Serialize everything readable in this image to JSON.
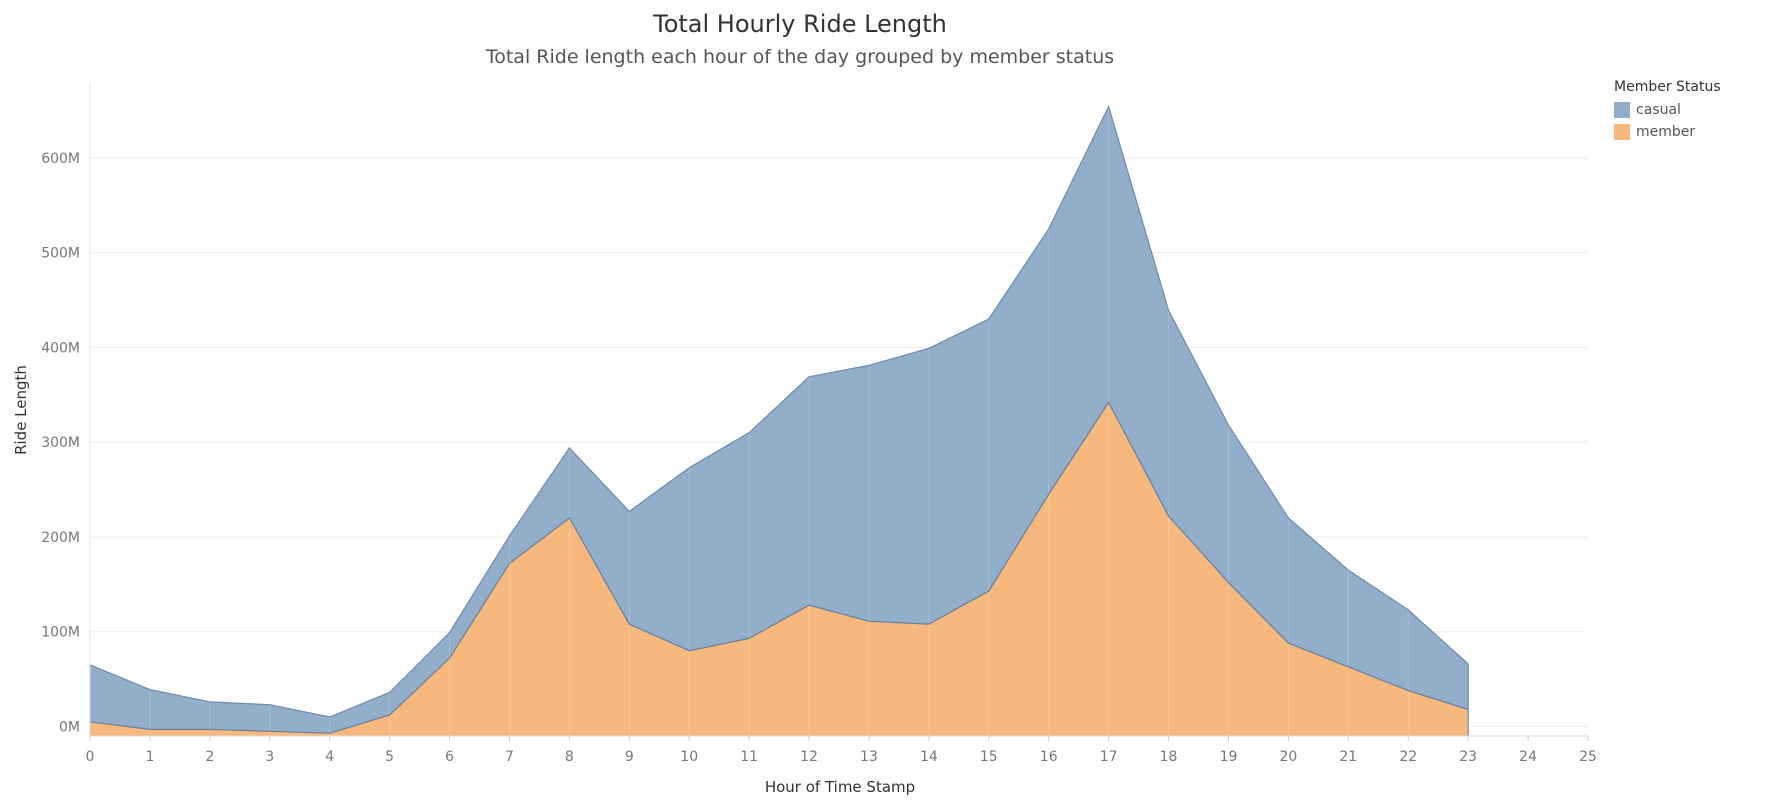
{
  "header": {
    "title": "Total Hourly Ride Length",
    "subtitle": "Total Ride length each hour of the day grouped by member status"
  },
  "legend": {
    "title": "Member Status",
    "items": [
      {
        "label": "casual",
        "color": "#93aecb"
      },
      {
        "label": "member",
        "color": "#f6b87c"
      }
    ]
  },
  "chart_data": {
    "type": "area",
    "stacked": true,
    "title": "Total Hourly Ride Length",
    "subtitle": "Total Ride length each hour of the day grouped by member status",
    "xlabel": "Hour of Time Stamp",
    "ylabel": "Ride Length",
    "x": [
      0,
      1,
      2,
      3,
      4,
      5,
      6,
      7,
      8,
      9,
      10,
      11,
      12,
      13,
      14,
      15,
      16,
      17,
      18,
      19,
      20,
      21,
      22,
      23
    ],
    "x_ticks": [
      "0",
      "1",
      "2",
      "3",
      "4",
      "5",
      "6",
      "7",
      "8",
      "9",
      "10",
      "11",
      "12",
      "13",
      "14",
      "15",
      "16",
      "17",
      "18",
      "19",
      "20",
      "21",
      "22",
      "23",
      "24",
      "25"
    ],
    "xlim": [
      0,
      25
    ],
    "y_ticks": [
      "0M",
      "100M",
      "200M",
      "300M",
      "400M",
      "500M",
      "600M"
    ],
    "y_tick_values": [
      0,
      100,
      200,
      300,
      400,
      500,
      600
    ],
    "ylim": [
      -10,
      680
    ],
    "y_unit": "M",
    "series": [
      {
        "name": "member",
        "color": "#f6b87c",
        "values": [
          5,
          -3,
          -3,
          -5,
          -7,
          12,
          72,
          172,
          220,
          108,
          80,
          93,
          128,
          111,
          108,
          143,
          245,
          342,
          222,
          152,
          88,
          63,
          38,
          18
        ]
      },
      {
        "name": "casual",
        "color": "#93aecb",
        "values": [
          60,
          42,
          29,
          28,
          17,
          24,
          27,
          29,
          74,
          119,
          193,
          217,
          241,
          270,
          291,
          287,
          280,
          312,
          217,
          166,
          132,
          102,
          85,
          48
        ]
      }
    ],
    "grid": "horizontal",
    "legend_position": "top-right"
  }
}
